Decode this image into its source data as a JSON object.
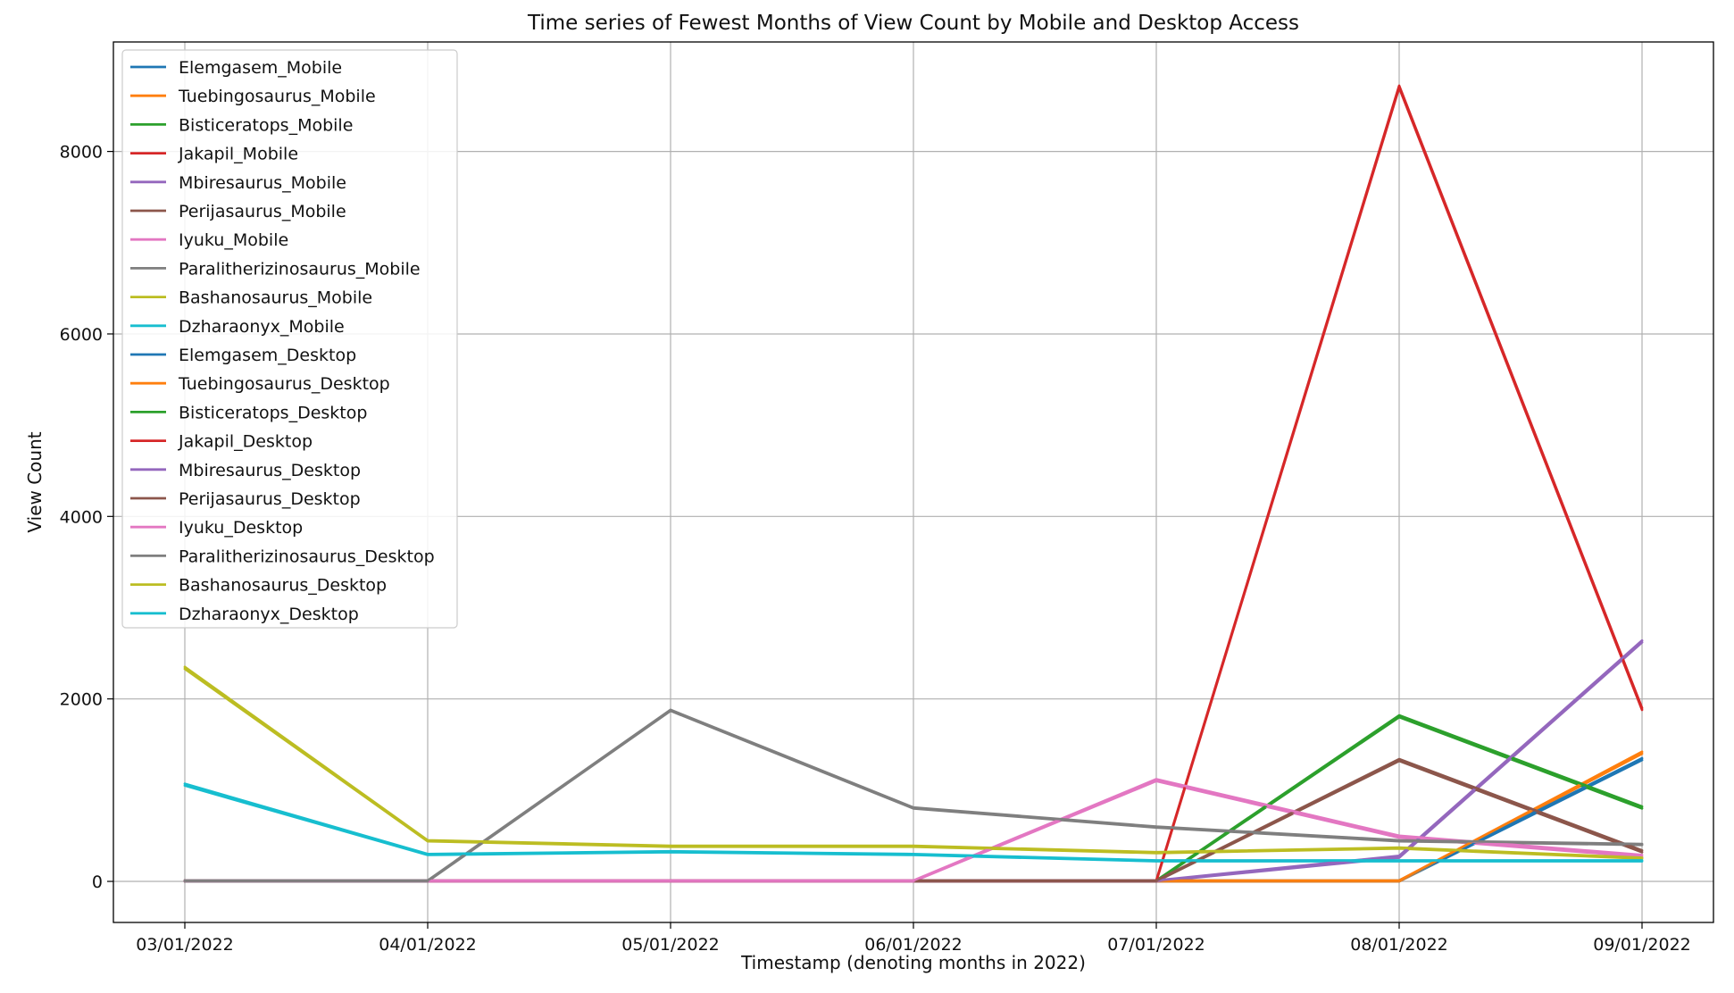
{
  "chart_data": {
    "type": "line",
    "title": "Time series of Fewest Months of View Count by Mobile and Desktop Access",
    "xlabel": "Timestamp (denoting months in 2022)",
    "ylabel": "View Count",
    "categories": [
      "03/01/2022",
      "04/01/2022",
      "05/01/2022",
      "06/01/2022",
      "07/01/2022",
      "08/01/2022",
      "09/01/2022"
    ],
    "ylim": [
      -450,
      9200
    ],
    "yticks": [
      0,
      2000,
      4000,
      6000,
      8000
    ],
    "grid": true,
    "legend_position": "upper-left",
    "series": [
      {
        "name": "Elemgasem_Mobile",
        "color": "#1f77b4",
        "values": [
          0,
          0,
          0,
          0,
          0,
          0,
          1330
        ]
      },
      {
        "name": "Tuebingosaurus_Mobile",
        "color": "#ff7f0e",
        "values": [
          0,
          0,
          0,
          0,
          0,
          0,
          1400
        ]
      },
      {
        "name": "Bisticeratops_Mobile",
        "color": "#2ca02c",
        "values": [
          0,
          0,
          0,
          0,
          0,
          1800,
          800
        ]
      },
      {
        "name": "Jakapil_Mobile",
        "color": "#d62728",
        "values": [
          0,
          0,
          0,
          0,
          0,
          8700,
          1880
        ]
      },
      {
        "name": "Mbiresaurus_Mobile",
        "color": "#9467bd",
        "values": [
          0,
          0,
          0,
          0,
          0,
          260,
          2620
        ]
      },
      {
        "name": "Perijasaurus_Mobile",
        "color": "#8c564b",
        "values": [
          0,
          0,
          0,
          0,
          0,
          1320,
          320
        ]
      },
      {
        "name": "Iyuku_Mobile",
        "color": "#e377c2",
        "values": [
          0,
          0,
          0,
          0,
          1100,
          480,
          270
        ]
      },
      {
        "name": "Paralitherizinosaurus_Mobile",
        "color": "#7f7f7f",
        "values": [
          0,
          0,
          1870,
          800,
          590,
          440,
          400
        ]
      },
      {
        "name": "Bashanosaurus_Mobile",
        "color": "#bcbd22",
        "values": [
          2330,
          440,
          380,
          380,
          310,
          360,
          250
        ]
      },
      {
        "name": "Dzharaonyx_Mobile",
        "color": "#17becf",
        "values": [
          1050,
          290,
          320,
          290,
          220,
          220,
          220
        ]
      },
      {
        "name": "Elemgasem_Desktop",
        "color": "#1f77b4",
        "values": [
          10,
          10,
          10,
          10,
          10,
          10,
          1350
        ]
      },
      {
        "name": "Tuebingosaurus_Desktop",
        "color": "#ff7f0e",
        "values": [
          10,
          10,
          10,
          10,
          10,
          10,
          1420
        ]
      },
      {
        "name": "Bisticeratops_Desktop",
        "color": "#2ca02c",
        "values": [
          10,
          10,
          10,
          10,
          10,
          1820,
          820
        ]
      },
      {
        "name": "Jakapil_Desktop",
        "color": "#d62728",
        "values": [
          10,
          10,
          10,
          10,
          10,
          8720,
          1900
        ]
      },
      {
        "name": "Mbiresaurus_Desktop",
        "color": "#9467bd",
        "values": [
          10,
          10,
          10,
          10,
          10,
          280,
          2640
        ]
      },
      {
        "name": "Perijasaurus_Desktop",
        "color": "#8c564b",
        "values": [
          10,
          10,
          10,
          10,
          10,
          1340,
          340
        ]
      },
      {
        "name": "Iyuku_Desktop",
        "color": "#e377c2",
        "values": [
          10,
          10,
          10,
          10,
          1120,
          500,
          290
        ]
      },
      {
        "name": "Paralitherizinosaurus_Desktop",
        "color": "#7f7f7f",
        "values": [
          10,
          10,
          1880,
          810,
          600,
          450,
          410
        ]
      },
      {
        "name": "Bashanosaurus_Desktop",
        "color": "#bcbd22",
        "values": [
          2350,
          450,
          390,
          390,
          320,
          370,
          260
        ]
      },
      {
        "name": "Dzharaonyx_Desktop",
        "color": "#17becf",
        "values": [
          1070,
          300,
          330,
          300,
          230,
          230,
          230
        ]
      }
    ]
  }
}
